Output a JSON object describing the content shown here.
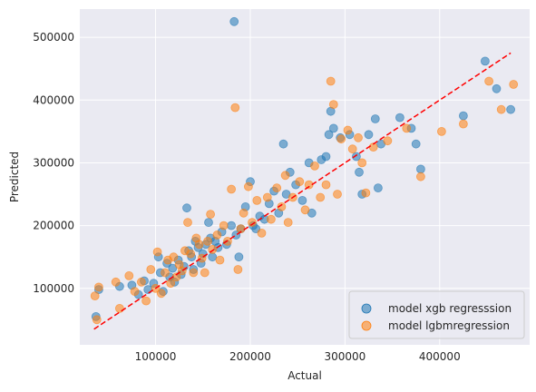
{
  "chart_data": {
    "type": "scatter",
    "xlabel": "Actual",
    "ylabel": "Predicted",
    "xlim": [
      20000,
      495000
    ],
    "ylim": [
      10000,
      545000
    ],
    "x_ticks": [
      100000,
      200000,
      300000,
      400000
    ],
    "y_ticks": [
      100000,
      200000,
      300000,
      400000,
      500000
    ],
    "grid": true,
    "legend_position": "lower right",
    "reference_line": {
      "style": "dashed",
      "color": "#ff0000",
      "from": [
        35000,
        35000
      ],
      "to": [
        475000,
        475000
      ]
    },
    "series": [
      {
        "name": "model xgb regresssion",
        "color": "#1f77b4",
        "points": [
          [
            37000,
            55000
          ],
          [
            40000,
            98000
          ],
          [
            62000,
            103000
          ],
          [
            75000,
            105000
          ],
          [
            82000,
            90000
          ],
          [
            88000,
            112000
          ],
          [
            92000,
            98000
          ],
          [
            98000,
            108000
          ],
          [
            103000,
            150000
          ],
          [
            105000,
            125000
          ],
          [
            108000,
            95000
          ],
          [
            112000,
            140000
          ],
          [
            115000,
            118000
          ],
          [
            118000,
            132000
          ],
          [
            120000,
            110000
          ],
          [
            124000,
            145000
          ],
          [
            127000,
            122000
          ],
          [
            130000,
            135000
          ],
          [
            133000,
            228000
          ],
          [
            135000,
            160000
          ],
          [
            138000,
            150000
          ],
          [
            140000,
            130000
          ],
          [
            142000,
            175000
          ],
          [
            145000,
            165000
          ],
          [
            148000,
            140000
          ],
          [
            150000,
            155000
          ],
          [
            153000,
            170000
          ],
          [
            156000,
            205000
          ],
          [
            158000,
            180000
          ],
          [
            160000,
            150000
          ],
          [
            163000,
            175000
          ],
          [
            166000,
            165000
          ],
          [
            170000,
            190000
          ],
          [
            175000,
            170000
          ],
          [
            180000,
            200000
          ],
          [
            183000,
            525000
          ],
          [
            185000,
            185000
          ],
          [
            188000,
            150000
          ],
          [
            190000,
            195000
          ],
          [
            195000,
            230000
          ],
          [
            200000,
            270000
          ],
          [
            203000,
            200000
          ],
          [
            206000,
            195000
          ],
          [
            210000,
            215000
          ],
          [
            215000,
            210000
          ],
          [
            220000,
            235000
          ],
          [
            225000,
            255000
          ],
          [
            230000,
            220000
          ],
          [
            235000,
            330000
          ],
          [
            238000,
            250000
          ],
          [
            242000,
            285000
          ],
          [
            248000,
            265000
          ],
          [
            255000,
            240000
          ],
          [
            262000,
            300000
          ],
          [
            265000,
            220000
          ],
          [
            275000,
            305000
          ],
          [
            280000,
            310000
          ],
          [
            283000,
            345000
          ],
          [
            285000,
            382000
          ],
          [
            288000,
            355000
          ],
          [
            295000,
            340000
          ],
          [
            305000,
            345000
          ],
          [
            312000,
            310000
          ],
          [
            315000,
            285000
          ],
          [
            318000,
            250000
          ],
          [
            325000,
            345000
          ],
          [
            332000,
            370000
          ],
          [
            335000,
            260000
          ],
          [
            338000,
            330000
          ],
          [
            358000,
            372000
          ],
          [
            370000,
            355000
          ],
          [
            375000,
            330000
          ],
          [
            380000,
            290000
          ],
          [
            425000,
            375000
          ],
          [
            448000,
            462000
          ],
          [
            460000,
            418000
          ],
          [
            475000,
            385000
          ]
        ]
      },
      {
        "name": "model lgbmregression",
        "color": "#ff7f0e",
        "points": [
          [
            36000,
            88000
          ],
          [
            38000,
            50000
          ],
          [
            40000,
            102000
          ],
          [
            58000,
            110000
          ],
          [
            62000,
            68000
          ],
          [
            72000,
            120000
          ],
          [
            78000,
            95000
          ],
          [
            85000,
            110000
          ],
          [
            90000,
            80000
          ],
          [
            95000,
            130000
          ],
          [
            100000,
            100000
          ],
          [
            102000,
            158000
          ],
          [
            106000,
            92000
          ],
          [
            110000,
            125000
          ],
          [
            113000,
            145000
          ],
          [
            116000,
            108000
          ],
          [
            119000,
            150000
          ],
          [
            122000,
            118000
          ],
          [
            125000,
            138000
          ],
          [
            128000,
            128000
          ],
          [
            131000,
            160000
          ],
          [
            134000,
            205000
          ],
          [
            137000,
            155000
          ],
          [
            140000,
            125000
          ],
          [
            143000,
            180000
          ],
          [
            146000,
            170000
          ],
          [
            149000,
            148000
          ],
          [
            152000,
            125000
          ],
          [
            155000,
            175000
          ],
          [
            158000,
            218000
          ],
          [
            160000,
            162000
          ],
          [
            165000,
            185000
          ],
          [
            168000,
            145000
          ],
          [
            172000,
            200000
          ],
          [
            176000,
            175000
          ],
          [
            180000,
            258000
          ],
          [
            184000,
            388000
          ],
          [
            187000,
            130000
          ],
          [
            190000,
            195000
          ],
          [
            193000,
            220000
          ],
          [
            198000,
            262000
          ],
          [
            202000,
            205000
          ],
          [
            207000,
            240000
          ],
          [
            212000,
            188000
          ],
          [
            218000,
            245000
          ],
          [
            222000,
            210000
          ],
          [
            228000,
            260000
          ],
          [
            233000,
            230000
          ],
          [
            237000,
            280000
          ],
          [
            240000,
            205000
          ],
          [
            245000,
            245000
          ],
          [
            252000,
            270000
          ],
          [
            258000,
            225000
          ],
          [
            262000,
            265000
          ],
          [
            268000,
            295000
          ],
          [
            274000,
            245000
          ],
          [
            280000,
            265000
          ],
          [
            285000,
            430000
          ],
          [
            288000,
            393000
          ],
          [
            292000,
            250000
          ],
          [
            296000,
            338000
          ],
          [
            303000,
            352000
          ],
          [
            308000,
            322000
          ],
          [
            314000,
            340000
          ],
          [
            318000,
            300000
          ],
          [
            322000,
            252000
          ],
          [
            330000,
            325000
          ],
          [
            345000,
            335000
          ],
          [
            365000,
            355000
          ],
          [
            380000,
            278000
          ],
          [
            402000,
            350000
          ],
          [
            425000,
            362000
          ],
          [
            452000,
            430000
          ],
          [
            465000,
            385000
          ],
          [
            478000,
            425000
          ]
        ]
      }
    ]
  }
}
